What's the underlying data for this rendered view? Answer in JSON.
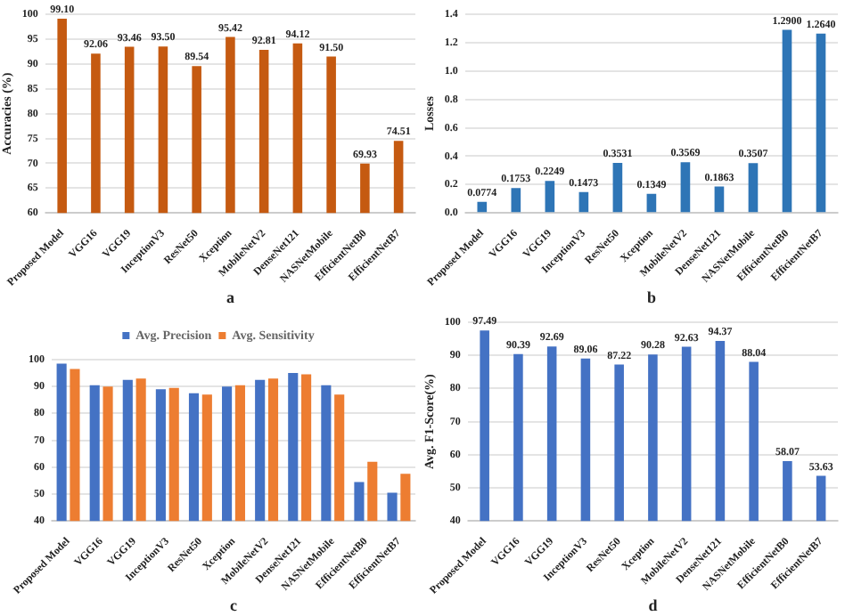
{
  "chart_data": [
    {
      "type": "bar",
      "xlabel": "a",
      "ylabel": "Accuracies (%)",
      "categories": [
        "Proposed Model",
        "VGG16",
        "VGG19",
        "InceptionV3",
        "ResNet50",
        "Xception",
        "MobileNetV2",
        "DenseNet121",
        "NASNetMobile",
        "EfficientNetB0",
        "EfficientNetB7"
      ],
      "values": [
        99.1,
        92.06,
        93.46,
        93.5,
        89.54,
        95.42,
        92.81,
        94.12,
        91.5,
        69.93,
        74.51
      ],
      "value_labels": [
        "99.10",
        "92.06",
        "93.46",
        "93.50",
        "89.54",
        "95.42",
        "92.81",
        "94.12",
        "91.50",
        "69.93",
        "74.51"
      ],
      "color": "#c55a11",
      "ylim": [
        60,
        100
      ],
      "yticks": [
        60,
        65,
        70,
        75,
        80,
        85,
        90,
        95,
        100
      ],
      "grid": "y",
      "legend": false
    },
    {
      "type": "bar",
      "xlabel": "b",
      "ylabel": "Losses",
      "categories": [
        "Proposed Model",
        "VGG16",
        "VGG19",
        "InceptionV3",
        "ResNet50",
        "Xception",
        "MobileNetV2",
        "DenseNet121",
        "NASNetMobile",
        "EfficientNetB0",
        "EfficientNetB7"
      ],
      "values": [
        0.0774,
        0.1753,
        0.2249,
        0.1473,
        0.3531,
        0.1349,
        0.3569,
        0.1863,
        0.3507,
        1.29,
        1.264
      ],
      "value_labels": [
        "0.0774",
        "0.1753",
        "0.2249",
        "0.1473",
        "0.3531",
        "0.1349",
        "0.3569",
        "0.1863",
        "0.3507",
        "1.2900",
        "1.2640"
      ],
      "color": "#2e75b6",
      "ylim": [
        0,
        1.4
      ],
      "yticks": [
        {
          "value": 0,
          "label": "0.0"
        },
        0.2,
        0.4,
        0.6,
        0.8,
        {
          "value": 1,
          "label": "1.0"
        },
        1.2,
        1.4
      ],
      "grid": "y",
      "legend": false
    },
    {
      "type": "bar",
      "xlabel": "c",
      "categories": [
        "Proposed Model",
        "VGG16",
        "VGG19",
        "InceptionV3",
        "ResNet50",
        "Xception",
        "MobileNetV2",
        "DenseNet121",
        "NASNetMobile",
        "EfficientNetB0",
        "EfficientNetB7"
      ],
      "series": [
        {
          "name": "Avg. Precision",
          "color": "#4472c4",
          "values": [
            98.5,
            90.5,
            92.5,
            89,
            87.5,
            90,
            92.5,
            95,
            90.5,
            54.5,
            50.5
          ]
        },
        {
          "name": "Avg. Sensitivity",
          "color": "#ed7d31",
          "values": [
            96.5,
            90,
            93,
            89.5,
            87,
            90.5,
            93,
            94.5,
            87,
            62,
            57.5
          ]
        }
      ],
      "ylim": [
        40,
        100
      ],
      "yticks": [
        40,
        50,
        60,
        70,
        80,
        90,
        100
      ],
      "grid": "y",
      "legend": "top"
    },
    {
      "type": "bar",
      "xlabel": "d",
      "ylabel": "Avg. F1-Score(%)",
      "categories": [
        "Proposed Model",
        "VGG16",
        "VGG19",
        "InceptionV3",
        "ResNet50",
        "Xception",
        "MobileNetV2",
        "DenseNet121",
        "NASNetMobile",
        "EfficientNetB0",
        "EfficientNetB7"
      ],
      "values": [
        97.49,
        90.39,
        92.69,
        89.06,
        87.22,
        90.28,
        92.63,
        94.37,
        88.04,
        58.07,
        53.63
      ],
      "value_labels": [
        "97.49",
        "90.39",
        "92.69",
        "89.06",
        "87.22",
        "90.28",
        "92.63",
        "94.37",
        "88.04",
        "58.07",
        "53.63"
      ],
      "color": "#4472c4",
      "ylim": [
        40,
        100
      ],
      "yticks": [
        40,
        50,
        60,
        70,
        80,
        90,
        100
      ],
      "grid": "y",
      "legend": false
    }
  ]
}
